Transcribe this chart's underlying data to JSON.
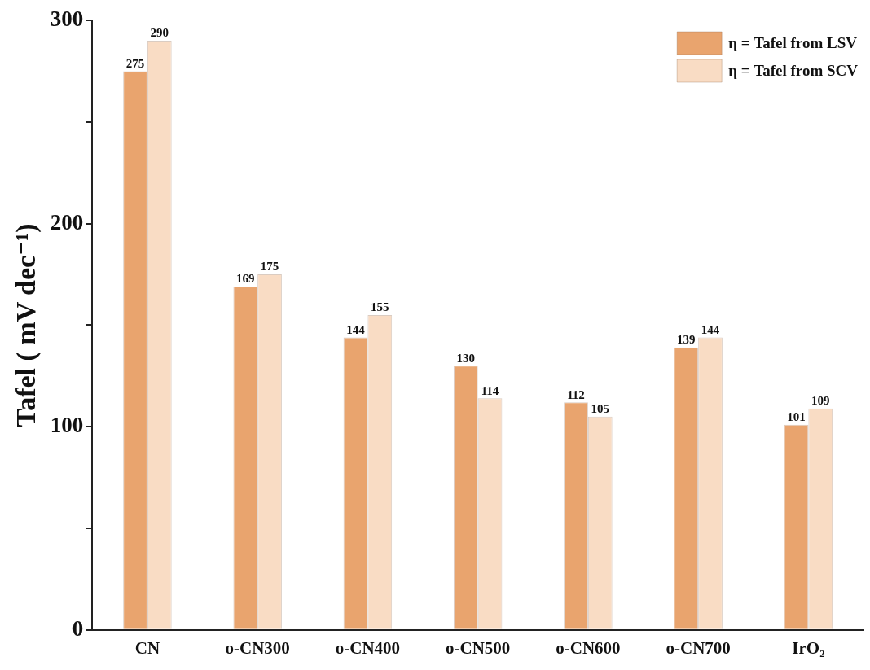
{
  "chart_data": {
    "type": "bar",
    "ylabel": "Tafel ( mV dec⁻¹)",
    "categories": [
      "CN",
      "o-CN300",
      "o-CN400",
      "o-CN500",
      "o-CN600",
      "o-CN700",
      "IrO₂"
    ],
    "series": [
      {
        "name": "η = Tafel from LSV",
        "color": "#e9a46e",
        "values": [
          275,
          169,
          144,
          130,
          112,
          139,
          101
        ]
      },
      {
        "name": "η = Tafel from SCV",
        "color": "#f9dcc4",
        "values": [
          290,
          175,
          155,
          114,
          105,
          144,
          109
        ]
      }
    ],
    "ylim": [
      0,
      300
    ],
    "yticks": [
      0,
      {
        "value": 50,
        "label": null
      },
      100,
      {
        "value": 150,
        "label": null
      },
      200,
      {
        "value": 250,
        "label": null
      },
      300
    ],
    "data_labels": true,
    "legend": "top right",
    "grid": false
  }
}
